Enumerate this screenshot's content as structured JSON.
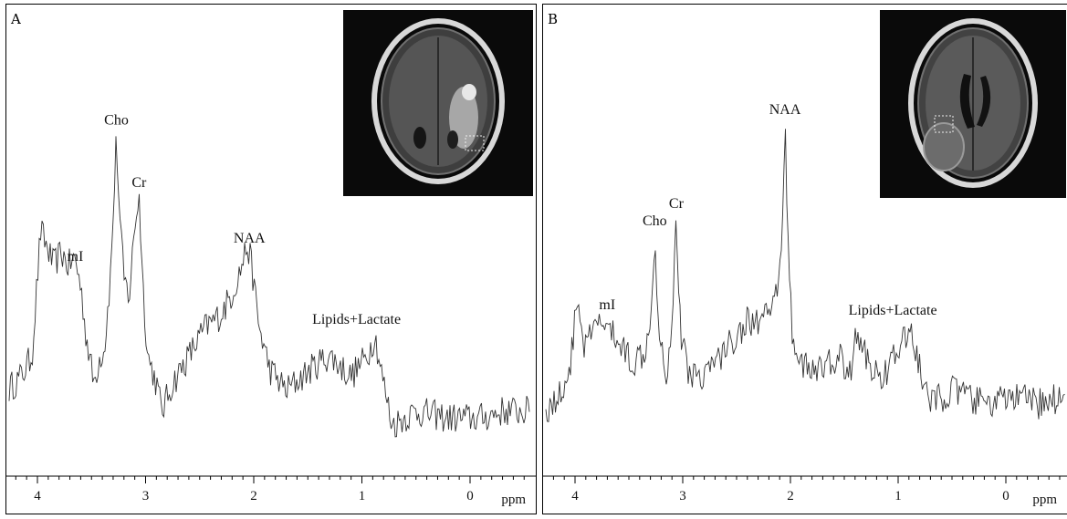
{
  "chart_data": [
    {
      "type": "line",
      "panel_label": "A",
      "xlabel": "ppm",
      "xlim": [
        4.3,
        -0.55
      ],
      "x_reversed": true,
      "xticks": [
        4,
        3,
        2,
        1,
        0
      ],
      "xtick_labels": [
        "4",
        "3",
        "2",
        "1",
        "0"
      ],
      "grid": false,
      "legend": "none",
      "series": [
        {
          "points": [
            [
              4.28,
              0.2
            ],
            [
              4.15,
              0.24
            ],
            [
              4.05,
              0.3
            ],
            [
              3.97,
              0.66
            ],
            [
              3.92,
              0.62
            ],
            [
              3.85,
              0.56
            ],
            [
              3.78,
              0.6
            ],
            [
              3.72,
              0.56
            ],
            [
              3.65,
              0.58
            ],
            [
              3.6,
              0.5
            ],
            [
              3.55,
              0.36
            ],
            [
              3.48,
              0.22
            ],
            [
              3.42,
              0.3
            ],
            [
              3.38,
              0.32
            ],
            [
              3.32,
              0.55
            ],
            [
              3.27,
              0.93
            ],
            [
              3.24,
              0.7
            ],
            [
              3.2,
              0.52
            ],
            [
              3.15,
              0.47
            ],
            [
              3.1,
              0.68
            ],
            [
              3.06,
              0.76
            ],
            [
              3.02,
              0.48
            ],
            [
              2.98,
              0.3
            ],
            [
              2.9,
              0.22
            ],
            [
              2.85,
              0.14
            ],
            [
              2.75,
              0.22
            ],
            [
              2.6,
              0.3
            ],
            [
              2.45,
              0.38
            ],
            [
              2.3,
              0.42
            ],
            [
              2.2,
              0.48
            ],
            [
              2.12,
              0.55
            ],
            [
              2.06,
              0.62
            ],
            [
              2.02,
              0.56
            ],
            [
              1.95,
              0.38
            ],
            [
              1.85,
              0.26
            ],
            [
              1.7,
              0.2
            ],
            [
              1.55,
              0.24
            ],
            [
              1.4,
              0.28
            ],
            [
              1.3,
              0.3
            ],
            [
              1.1,
              0.24
            ],
            [
              0.95,
              0.3
            ],
            [
              0.88,
              0.36
            ],
            [
              0.8,
              0.22
            ],
            [
              0.72,
              0.1
            ],
            [
              0.5,
              0.14
            ],
            [
              0.2,
              0.12
            ],
            [
              -0.1,
              0.12
            ],
            [
              -0.3,
              0.14
            ],
            [
              -0.5,
              0.14
            ]
          ]
        }
      ],
      "annotations": [
        {
          "label": "Cho",
          "x": 3.27
        },
        {
          "label": "Cr",
          "x": 3.06
        },
        {
          "label": "mI",
          "x": 3.6
        },
        {
          "label": "NAA",
          "x": 2.04
        },
        {
          "label": "Lipids+Lactate",
          "x": 1.05
        }
      ]
    },
    {
      "type": "line",
      "panel_label": "B",
      "xlabel": "ppm",
      "xlim": [
        4.3,
        -0.55
      ],
      "x_reversed": true,
      "xticks": [
        4,
        3,
        2,
        1,
        0
      ],
      "xtick_labels": [
        "4",
        "3",
        "2",
        "1",
        "0"
      ],
      "grid": false,
      "legend": "none",
      "series": [
        {
          "points": [
            [
              4.28,
              0.14
            ],
            [
              4.15,
              0.18
            ],
            [
              4.05,
              0.26
            ],
            [
              3.97,
              0.48
            ],
            [
              3.92,
              0.32
            ],
            [
              3.85,
              0.36
            ],
            [
              3.75,
              0.4
            ],
            [
              3.65,
              0.36
            ],
            [
              3.55,
              0.32
            ],
            [
              3.45,
              0.28
            ],
            [
              3.35,
              0.32
            ],
            [
              3.3,
              0.42
            ],
            [
              3.26,
              0.64
            ],
            [
              3.22,
              0.38
            ],
            [
              3.15,
              0.24
            ],
            [
              3.1,
              0.4
            ],
            [
              3.06,
              0.7
            ],
            [
              3.02,
              0.36
            ],
            [
              2.95,
              0.26
            ],
            [
              2.85,
              0.24
            ],
            [
              2.7,
              0.28
            ],
            [
              2.55,
              0.34
            ],
            [
              2.4,
              0.4
            ],
            [
              2.25,
              0.4
            ],
            [
              2.15,
              0.44
            ],
            [
              2.08,
              0.6
            ],
            [
              2.05,
              0.96
            ],
            [
              2.02,
              0.62
            ],
            [
              1.98,
              0.34
            ],
            [
              1.85,
              0.26
            ],
            [
              1.7,
              0.26
            ],
            [
              1.55,
              0.3
            ],
            [
              1.45,
              0.24
            ],
            [
              1.4,
              0.36
            ],
            [
              1.3,
              0.3
            ],
            [
              1.2,
              0.24
            ],
            [
              1.1,
              0.26
            ],
            [
              0.95,
              0.34
            ],
            [
              0.88,
              0.38
            ],
            [
              0.8,
              0.26
            ],
            [
              0.7,
              0.16
            ],
            [
              0.5,
              0.2
            ],
            [
              0.2,
              0.16
            ],
            [
              -0.1,
              0.18
            ],
            [
              -0.3,
              0.16
            ],
            [
              -0.5,
              0.18
            ]
          ]
        }
      ],
      "annotations": [
        {
          "label": "Cho",
          "x": 3.26
        },
        {
          "label": "Cr",
          "x": 3.06
        },
        {
          "label": "mI",
          "x": 3.65
        },
        {
          "label": "NAA",
          "x": 2.05
        },
        {
          "label": "Lipids+Lactate",
          "x": 1.05
        }
      ]
    }
  ]
}
